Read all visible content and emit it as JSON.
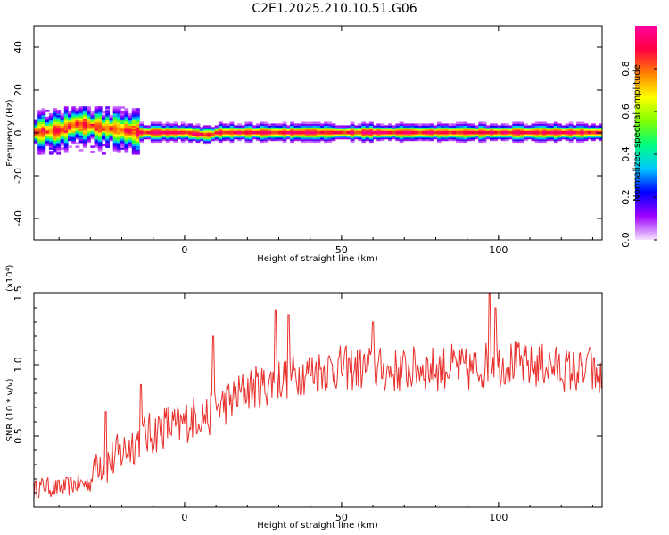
{
  "title": "C2E1.2025.210.10.51.G06",
  "chart_data": [
    {
      "type": "heatmap",
      "xlabel": "Height of straight line (km)",
      "ylabel": "Frequency (Hz)",
      "xlim": [
        -48,
        133
      ],
      "ylim": [
        -50,
        50
      ],
      "xticks": [
        0,
        50,
        100
      ],
      "yticks": [
        -40,
        -20,
        0,
        20,
        40
      ],
      "colorbar": {
        "label": "Normalized spectral amplitude",
        "range": [
          0,
          1
        ],
        "ticks": [
          "0.0",
          "0.2",
          "0.4",
          "0.6",
          "0.8"
        ],
        "colormap": [
          "#f4e3ff",
          "#a000ff",
          "#0000ff",
          "#00c8ff",
          "#00ff80",
          "#80ff00",
          "#ffff00",
          "#ff8000",
          "#ff0040",
          "#ff00a0"
        ]
      },
      "ridge": {
        "x": [
          -48,
          -40,
          -35,
          -30,
          -25,
          -20,
          -15,
          -10,
          -5,
          0,
          5,
          8,
          10,
          20,
          40,
          60,
          80,
          100,
          120,
          133
        ],
        "frequency": [
          0,
          1,
          4,
          3,
          2,
          1,
          0,
          0,
          0,
          0,
          -1,
          -1,
          0,
          0,
          0,
          0,
          0,
          0,
          0,
          0
        ]
      }
    },
    {
      "type": "line",
      "xlabel": "Height of straight line (km)",
      "ylabel": "SNR (10 * v/v)",
      "y_multiplier": "(x10⁴)",
      "xlim": [
        -48,
        133
      ],
      "ylim": [
        0,
        1.5
      ],
      "xticks": [
        0,
        50,
        100
      ],
      "yticks": [
        "0.5",
        "1.0",
        "1.5"
      ],
      "series": [
        {
          "color": "#e8302c",
          "x": [
            -48,
            -45,
            -40,
            -35,
            -30,
            -28,
            -25,
            -22,
            -18,
            -15,
            -12,
            -10,
            -8,
            -5,
            -2,
            0,
            2,
            5,
            8,
            10,
            15,
            20,
            25,
            30,
            35,
            40,
            45,
            50,
            55,
            60,
            65,
            70,
            75,
            80,
            85,
            90,
            95,
            98,
            100,
            105,
            110,
            115,
            120,
            125,
            130,
            133
          ],
          "values": [
            0.12,
            0.15,
            0.13,
            0.16,
            0.17,
            0.35,
            0.3,
            0.35,
            0.42,
            0.48,
            0.5,
            0.52,
            0.55,
            0.58,
            0.55,
            0.6,
            0.62,
            0.66,
            0.63,
            0.7,
            0.75,
            0.83,
            0.85,
            0.9,
            0.93,
            0.95,
            0.97,
            0.98,
            0.97,
            0.98,
            0.95,
            0.96,
            0.98,
            0.97,
            0.99,
            0.96,
            0.98,
            1.05,
            1.0,
            1.02,
            0.98,
            1.0,
            0.97,
            0.95,
            0.93,
            0.9
          ],
          "peaks": [
            [
              -25,
              0.67
            ],
            [
              -14,
              0.86
            ],
            [
              9,
              1.2
            ],
            [
              29,
              1.38
            ],
            [
              33,
              1.35
            ],
            [
              60,
              1.3
            ],
            [
              97,
              1.5
            ],
            [
              99,
              1.4
            ],
            [
              129,
              1.12
            ]
          ]
        }
      ]
    }
  ]
}
